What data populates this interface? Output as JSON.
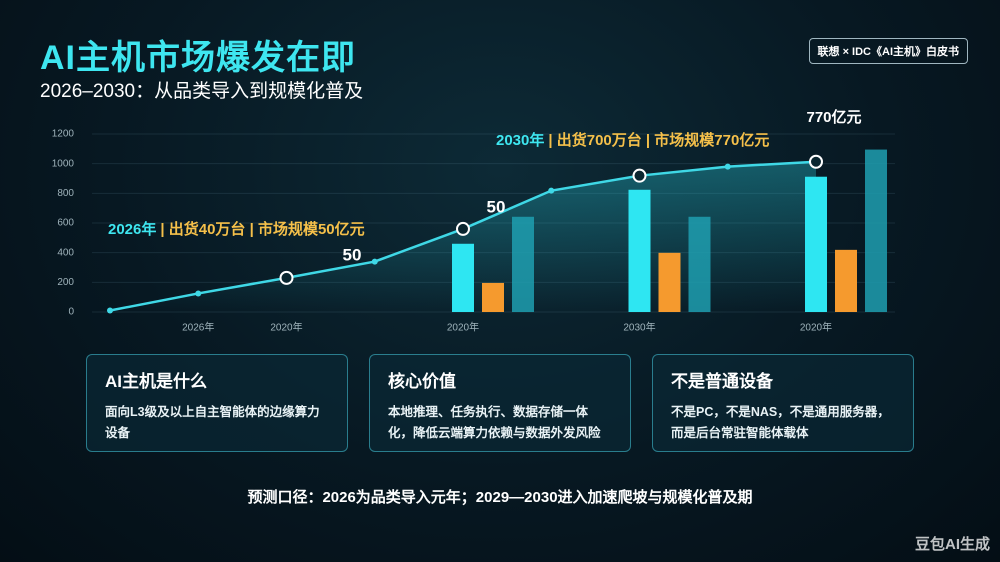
{
  "header": {
    "title": "AI主机市场爆发在即",
    "subtitle": "2026–2030：从品类导入到规模化普及",
    "badge": "联想 × IDC《AI主机》白皮书"
  },
  "chart_data": {
    "type": "bar-line",
    "categories": [
      null,
      "2026年",
      "2020年",
      null,
      "2020年",
      null,
      "2030年",
      null,
      "2020年"
    ],
    "ylim": [
      0,
      1200
    ],
    "yticks": [
      0,
      200,
      400,
      600,
      800,
      1000,
      1200
    ],
    "line": {
      "color": "#3fd8e6",
      "values": [
        10,
        125,
        230,
        340,
        560,
        818,
        919,
        980,
        1013
      ]
    },
    "series": [
      {
        "color": "#2ee6f2",
        "values": [
          null,
          null,
          null,
          null,
          460,
          null,
          824,
          null,
          912
        ]
      },
      {
        "color": "#f59a2e",
        "values": [
          null,
          null,
          null,
          null,
          196,
          null,
          399,
          null,
          419
        ]
      },
      {
        "color": "#1f9fb0",
        "values": [
          null,
          null,
          null,
          null,
          642,
          null,
          642,
          null,
          1095
        ]
      }
    ],
    "annotations": {
      "point_a": "50",
      "point_b": "50",
      "point_c": "770亿元",
      "callout_2026": {
        "year": "2026年",
        "detail": "| 出货40万台 | 市场规模50亿元"
      },
      "callout_2030": {
        "year": "2030年",
        "detail": "| 出货700万台 | 市场规模770亿元"
      }
    }
  },
  "cards": [
    {
      "title": "AI主机是什么",
      "body": "面向L3级及以上自主智能体的边缘算力设备"
    },
    {
      "title": "核心价值",
      "body": "本地推理、任务执行、数据存储一体化，降低云端算力依赖与数据外发风险"
    },
    {
      "title": "不是普通设备",
      "body": "不是PC，不是NAS，不是通用服务器，而是后台常驻智能体载体"
    }
  ],
  "footer": "预测口径：2026为品类导入元年；2029—2030进入加速爬坡与规模化普及期",
  "watermark": "豆包AI生成"
}
